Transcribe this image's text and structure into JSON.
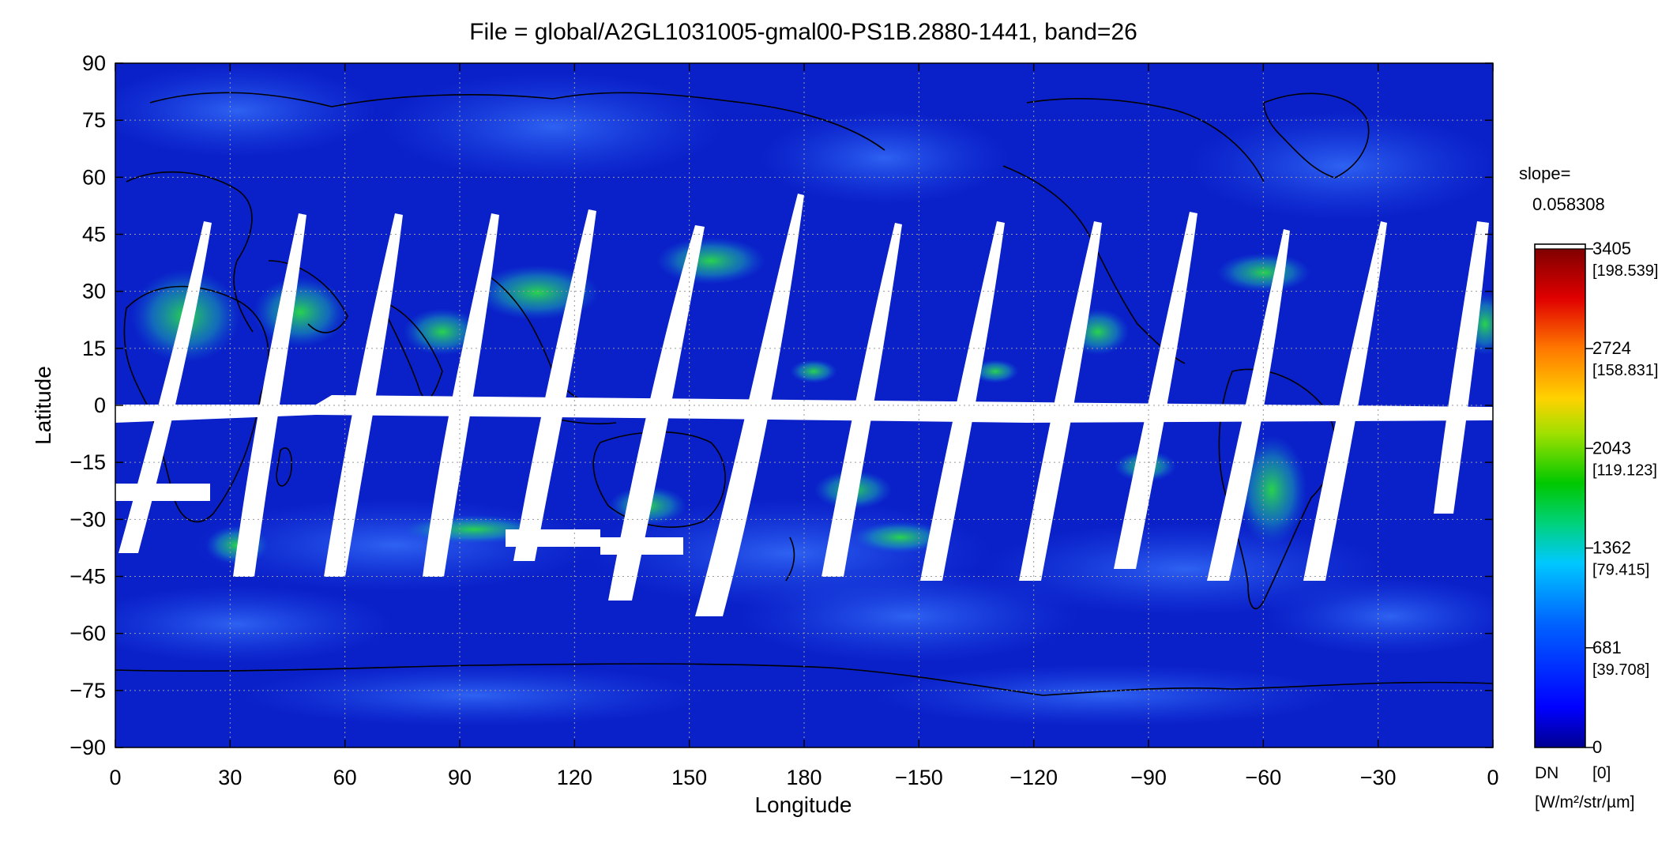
{
  "map": {
    "title": "File = global/A2GL1031005-gmal00-PS1B.2880-1441, band=26",
    "xlabel": "Longitude",
    "ylabel": "Latitude",
    "x_ticks": [
      "0",
      "30",
      "60",
      "90",
      "120",
      "150",
      "180",
      "−150",
      "−120",
      "−90",
      "−60",
      "−30",
      "0"
    ],
    "y_ticks": [
      "90",
      "75",
      "60",
      "45",
      "30",
      "15",
      "0",
      "−15",
      "−30",
      "−45",
      "−60",
      "−75",
      "−90"
    ],
    "lon_range": [
      0,
      360
    ],
    "lat_range": [
      -90,
      90
    ],
    "grid": true,
    "background_color": "#0a20c8",
    "cloud_color": "#1ed23c",
    "gap_color": "#ffffff"
  },
  "colorbar": {
    "slope_label": "slope=",
    "slope_value": "0.058308",
    "ticks": [
      {
        "dn": "3405",
        "radiance": "[198.539]",
        "value": 3405
      },
      {
        "dn": "2724",
        "radiance": "[158.831]",
        "value": 2724
      },
      {
        "dn": "2043",
        "radiance": "[119.123]",
        "value": 2043
      },
      {
        "dn": "1362",
        "radiance": "[79.415]",
        "value": 1362
      },
      {
        "dn": "681",
        "radiance": "[39.708]",
        "value": 681
      },
      {
        "dn": "0",
        "radiance": "[0]",
        "value": 0
      }
    ],
    "max_value": 3405,
    "unit_dn": "DN",
    "unit_radiance": "[W/m²/str/µm]",
    "colors": [
      "#000090",
      "#0000ff",
      "#0080ff",
      "#00e0e0",
      "#00c800",
      "#c8e000",
      "#ffc800",
      "#ff6000",
      "#e00000",
      "#800000"
    ]
  }
}
